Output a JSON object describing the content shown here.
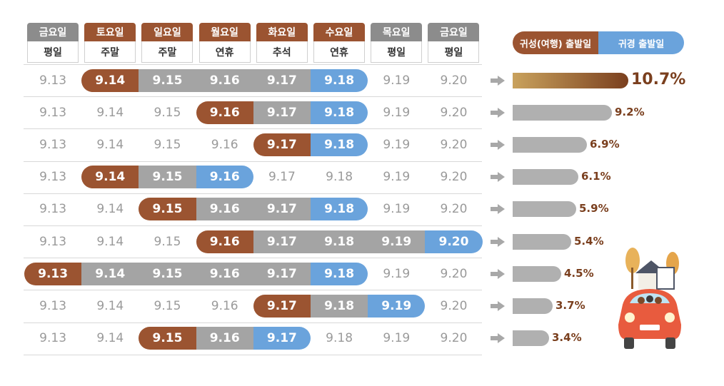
{
  "colors": {
    "header_gray": "#8c8c8c",
    "header_brown": "#9b5431",
    "depart": "#9b5431",
    "middle": "#a4a4a4",
    "return": "#6aa3dc",
    "bar_gray": "#b0b0b0",
    "bar_top_start": "#c9a25d",
    "bar_top_end": "#7a3f1e"
  },
  "headers": [
    {
      "day": "금요일",
      "type": "평일",
      "style": "gray"
    },
    {
      "day": "토요일",
      "type": "주말",
      "style": "brown"
    },
    {
      "day": "일요일",
      "type": "주말",
      "style": "brown"
    },
    {
      "day": "월요일",
      "type": "연휴",
      "style": "brown"
    },
    {
      "day": "화요일",
      "type": "추석",
      "style": "brown"
    },
    {
      "day": "수요일",
      "type": "연휴",
      "style": "brown"
    },
    {
      "day": "목요일",
      "type": "평일",
      "style": "gray"
    },
    {
      "day": "금요일",
      "type": "평일",
      "style": "gray"
    }
  ],
  "legend": {
    "depart": "귀성(여행) 출발일",
    "return": "귀경 출발일"
  },
  "chart_data": {
    "type": "bar",
    "dates": [
      "9.13",
      "9.14",
      "9.15",
      "9.16",
      "9.17",
      "9.18",
      "9.19",
      "9.20"
    ],
    "rows": [
      {
        "start": 1,
        "end": 5,
        "value": 10.7,
        "label": "10.7%",
        "top": true
      },
      {
        "start": 3,
        "end": 5,
        "value": 9.2,
        "label": "9.2%"
      },
      {
        "start": 4,
        "end": 5,
        "value": 6.9,
        "label": "6.9%"
      },
      {
        "start": 1,
        "end": 3,
        "value": 6.1,
        "label": "6.1%"
      },
      {
        "start": 2,
        "end": 5,
        "value": 5.9,
        "label": "5.9%"
      },
      {
        "start": 3,
        "end": 7,
        "value": 5.4,
        "label": "5.4%"
      },
      {
        "start": 0,
        "end": 5,
        "value": 4.5,
        "label": "4.5%"
      },
      {
        "start": 4,
        "end": 6,
        "value": 3.7,
        "label": "3.7%"
      },
      {
        "start": 2,
        "end": 4,
        "value": 3.4,
        "label": "3.4%"
      }
    ]
  }
}
